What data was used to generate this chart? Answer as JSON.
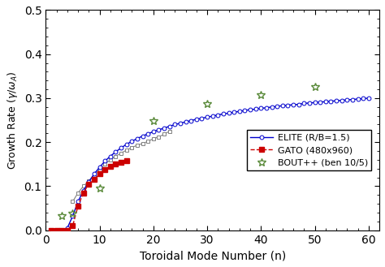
{
  "gato_x": [
    1,
    2,
    3,
    4,
    5,
    6,
    7,
    8,
    9,
    10,
    11,
    12,
    13,
    14,
    15
  ],
  "gato_y": [
    0.0,
    0.0,
    0.0,
    0.0,
    0.01,
    0.055,
    0.085,
    0.105,
    0.115,
    0.128,
    0.138,
    0.145,
    0.15,
    0.155,
    0.158
  ],
  "gray_x": [
    5,
    6,
    7,
    8,
    9,
    10,
    11,
    12,
    13,
    14,
    15,
    16,
    17,
    18,
    19,
    20,
    21,
    22,
    23
  ],
  "gray_y": [
    0.065,
    0.085,
    0.1,
    0.112,
    0.125,
    0.138,
    0.15,
    0.16,
    0.168,
    0.175,
    0.182,
    0.188,
    0.193,
    0.197,
    0.202,
    0.208,
    0.212,
    0.218,
    0.225
  ],
  "elite_x": [
    1,
    2,
    3,
    4,
    5,
    6,
    7,
    8,
    9,
    10,
    11,
    12,
    13,
    14,
    15,
    16,
    17,
    18,
    19,
    20,
    21,
    22,
    23,
    24,
    25,
    26,
    27,
    28,
    29,
    30,
    31,
    32,
    33,
    34,
    35,
    36,
    37,
    38,
    39,
    40,
    41,
    42,
    43,
    44,
    45,
    46,
    47,
    48,
    49,
    50,
    51,
    52,
    53,
    54,
    55,
    56,
    57,
    58,
    59,
    60
  ],
  "elite_y": [
    0.0,
    0.0,
    0.0,
    0.005,
    0.032,
    0.065,
    0.09,
    0.11,
    0.128,
    0.143,
    0.157,
    0.168,
    0.178,
    0.187,
    0.195,
    0.202,
    0.208,
    0.214,
    0.219,
    0.224,
    0.228,
    0.232,
    0.236,
    0.24,
    0.243,
    0.246,
    0.249,
    0.252,
    0.254,
    0.257,
    0.259,
    0.262,
    0.264,
    0.266,
    0.268,
    0.27,
    0.272,
    0.274,
    0.275,
    0.277,
    0.278,
    0.28,
    0.281,
    0.283,
    0.284,
    0.285,
    0.286,
    0.288,
    0.289,
    0.29,
    0.291,
    0.292,
    0.293,
    0.294,
    0.295,
    0.296,
    0.297,
    0.298,
    0.299,
    0.3
  ],
  "bout_x": [
    3,
    5,
    10,
    20,
    30,
    40,
    50
  ],
  "bout_y": [
    0.032,
    0.038,
    0.095,
    0.248,
    0.287,
    0.308,
    0.325
  ],
  "gato_color": "#cc0000",
  "elite_color": "#0000cc",
  "bout_color": "#5a8a3a",
  "gray_color": "#808080",
  "xlabel": "Toroidal Mode Number (n)",
  "ylabel": "Growth Rate ($\\gamma/\\omega_A$)",
  "xlim": [
    0,
    62
  ],
  "ylim": [
    0.0,
    0.5
  ],
  "xticks": [
    0,
    10,
    20,
    30,
    40,
    50,
    60
  ],
  "yticks": [
    0.0,
    0.1,
    0.2,
    0.3,
    0.4,
    0.5
  ],
  "legend_gato": "GATO (480x960)",
  "legend_elite": "ELITE (R/B=1.5)",
  "legend_bout": "BOUT++ (ben 10/5)"
}
